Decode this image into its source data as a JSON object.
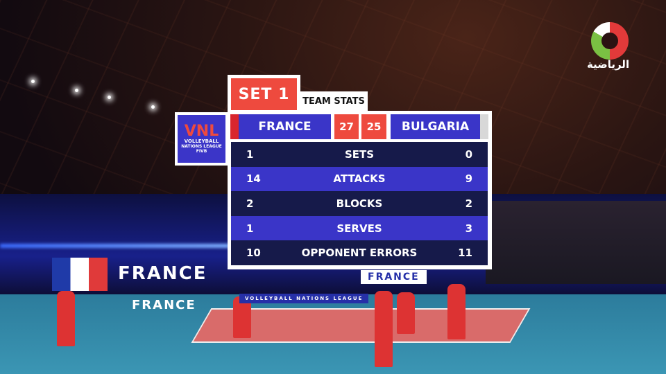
{
  "channel": {
    "name": "الرياضية"
  },
  "venue": {
    "banners": [
      "FRANCE",
      "FRANCE",
      "FRANCE"
    ],
    "board_label": "VOLLEYBALL NATIONS LEAGUE"
  },
  "overlay": {
    "set_label": "SET 1",
    "title": "TEAM STATS",
    "logo": {
      "name": "VNL",
      "line1": "VOLLEYBALL",
      "line2": "NATIONS LEAGUE",
      "line3": "FIVB"
    },
    "home": {
      "team": "FRANCE",
      "score": "27"
    },
    "away": {
      "team": "BULGARIA",
      "score": "25"
    },
    "stats": [
      {
        "home": "1",
        "label": "SETS",
        "away": "0"
      },
      {
        "home": "14",
        "label": "ATTACKS",
        "away": "9"
      },
      {
        "home": "2",
        "label": "BLOCKS",
        "away": "2"
      },
      {
        "home": "1",
        "label": "SERVES",
        "away": "3"
      },
      {
        "home": "10",
        "label": "OPPONENT ERRORS",
        "away": "11"
      }
    ],
    "colors": {
      "red": "#ee4a3e",
      "blue": "#3a35c8",
      "navy": "#161a4a"
    }
  }
}
